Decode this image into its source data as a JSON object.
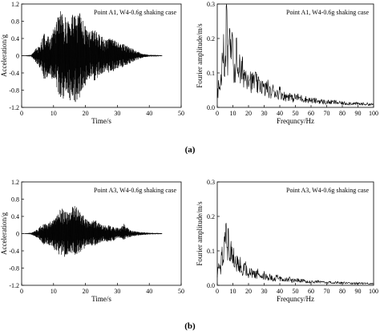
{
  "panels": [
    {
      "label": "(a)"
    },
    {
      "label": "(b)"
    }
  ],
  "chart_data": [
    {
      "type": "line",
      "title": "Point A1, W4-0.6g shaking case",
      "xlabel": "Time/s",
      "ylabel": "Acceleration/g",
      "xlim": [
        0,
        50
      ],
      "ylim": [
        -1.2,
        1.2
      ],
      "xticks": [
        "0",
        "10",
        "20",
        "30",
        "40",
        "50"
      ],
      "yticks": [
        "-1.2",
        "-0.8",
        "-0.4",
        "0",
        "0.4",
        "0.8",
        "1.2"
      ],
      "grid": false,
      "x": [
        0,
        3,
        4,
        5,
        6,
        7,
        8,
        9,
        10,
        11,
        12,
        13,
        14,
        15,
        16,
        17,
        18,
        19,
        20,
        21,
        22,
        23,
        24,
        25,
        26,
        27,
        28,
        29,
        30,
        31,
        32,
        33,
        34,
        35,
        36,
        37,
        38,
        40,
        44
      ],
      "y_max": [
        0,
        0.02,
        0.12,
        0.22,
        0.3,
        0.58,
        0.48,
        0.42,
        0.62,
        0.8,
        1.05,
        0.98,
        0.88,
        0.82,
        1.0,
        0.96,
        1.05,
        0.85,
        0.72,
        0.55,
        0.58,
        0.62,
        0.52,
        0.48,
        0.35,
        0.42,
        0.4,
        0.36,
        0.32,
        0.28,
        0.3,
        0.25,
        0.18,
        0.16,
        0.1,
        0.08,
        0.04,
        0.02,
        0.01
      ],
      "y_min": [
        0,
        -0.02,
        -0.12,
        -0.22,
        -0.32,
        -0.55,
        -0.5,
        -0.44,
        -0.62,
        -0.78,
        -0.95,
        -1.02,
        -0.88,
        -1.1,
        -0.98,
        -1.12,
        -1.0,
        -0.82,
        -0.7,
        -0.58,
        -0.55,
        -0.6,
        -0.5,
        -0.45,
        -0.38,
        -0.4,
        -0.42,
        -0.35,
        -0.3,
        -0.28,
        -0.26,
        -0.22,
        -0.18,
        -0.14,
        -0.1,
        -0.08,
        -0.04,
        -0.02,
        -0.01
      ]
    },
    {
      "type": "line",
      "title": "Point A1, W4-0.6g shaking case",
      "xlabel": "Frequncy/Hz",
      "ylabel": "Fourier amplitude/m/s",
      "xlim": [
        0,
        100
      ],
      "ylim": [
        0,
        0.3
      ],
      "xticks": [
        "0",
        "10",
        "20",
        "30",
        "40",
        "50",
        "60",
        "70",
        "80",
        "90",
        "100"
      ],
      "yticks": [
        "0.0",
        "0.1",
        "0.2",
        "0.3"
      ],
      "grid": false,
      "x": [
        0,
        1,
        2,
        3,
        4,
        5,
        6,
        7,
        8,
        9,
        10,
        11,
        12,
        13,
        14,
        15,
        16,
        18,
        20,
        22,
        24,
        26,
        28,
        30,
        32,
        34,
        36,
        38,
        40,
        42,
        44,
        46,
        48,
        50,
        55,
        60,
        65,
        70,
        75,
        80,
        85,
        90,
        95,
        100
      ],
      "y": [
        0.03,
        0.07,
        0.05,
        0.12,
        0.16,
        0.1,
        0.245,
        0.12,
        0.19,
        0.14,
        0.17,
        0.09,
        0.16,
        0.12,
        0.13,
        0.08,
        0.11,
        0.09,
        0.1,
        0.07,
        0.08,
        0.06,
        0.07,
        0.05,
        0.06,
        0.04,
        0.05,
        0.04,
        0.045,
        0.035,
        0.03,
        0.035,
        0.025,
        0.03,
        0.025,
        0.02,
        0.018,
        0.015,
        0.015,
        0.012,
        0.012,
        0.01,
        0.01,
        0.008
      ]
    },
    {
      "type": "line",
      "title": "Point A3, W4-0.6g shaking case",
      "xlabel": "Time/s",
      "ylabel": "Acceleration/g",
      "xlim": [
        0,
        50
      ],
      "ylim": [
        -1.2,
        1.2
      ],
      "xticks": [
        "0",
        "10",
        "20",
        "30",
        "40",
        "50"
      ],
      "yticks": [
        "-1.2",
        "-0.8",
        "-0.4",
        "0",
        "0.4",
        "0.8",
        "1.2"
      ],
      "grid": false,
      "x": [
        0,
        3,
        4,
        5,
        6,
        7,
        8,
        9,
        10,
        11,
        12,
        13,
        14,
        15,
        16,
        17,
        18,
        19,
        20,
        21,
        22,
        23,
        24,
        25,
        26,
        27,
        28,
        29,
        30,
        31,
        32,
        33,
        34,
        35,
        36,
        37,
        38,
        40,
        44
      ],
      "y_max": [
        0,
        0.02,
        0.06,
        0.1,
        0.18,
        0.25,
        0.22,
        0.28,
        0.32,
        0.42,
        0.55,
        0.6,
        0.52,
        0.48,
        0.62,
        0.7,
        0.55,
        0.45,
        0.35,
        0.28,
        0.3,
        0.32,
        0.26,
        0.22,
        0.18,
        0.2,
        0.18,
        0.16,
        0.14,
        0.12,
        0.24,
        0.15,
        0.08,
        0.06,
        0.05,
        0.04,
        0.03,
        0.02,
        0.01
      ],
      "y_min": [
        0,
        -0.02,
        -0.06,
        -0.1,
        -0.18,
        -0.26,
        -0.24,
        -0.28,
        -0.35,
        -0.45,
        -0.5,
        -0.55,
        -0.58,
        -0.48,
        -0.46,
        -0.5,
        -0.45,
        -0.4,
        -0.32,
        -0.26,
        -0.28,
        -0.3,
        -0.24,
        -0.22,
        -0.18,
        -0.2,
        -0.18,
        -0.16,
        -0.12,
        -0.1,
        -0.14,
        -0.1,
        -0.08,
        -0.06,
        -0.05,
        -0.04,
        -0.03,
        -0.02,
        -0.01
      ]
    },
    {
      "type": "line",
      "title": "Point A3, W4-0.6g shaking case",
      "xlabel": "Frequncy/Hz",
      "ylabel": "Fourier amplitude/m/s",
      "xlim": [
        0,
        100
      ],
      "ylim": [
        0,
        0.3
      ],
      "xticks": [
        "0",
        "10",
        "20",
        "30",
        "40",
        "50",
        "60",
        "70",
        "80",
        "90",
        "100"
      ],
      "yticks": [
        "0.0",
        "0.1",
        "0.2",
        "0.3"
      ],
      "grid": false,
      "x": [
        0,
        1,
        2,
        3,
        4,
        5,
        6,
        7,
        8,
        9,
        10,
        11,
        12,
        13,
        14,
        15,
        16,
        18,
        20,
        22,
        24,
        26,
        28,
        30,
        32,
        34,
        36,
        38,
        40,
        42,
        44,
        46,
        48,
        50,
        55,
        60,
        65,
        70,
        75,
        80,
        85,
        90,
        95,
        100
      ],
      "y": [
        0.02,
        0.07,
        0.05,
        0.09,
        0.06,
        0.175,
        0.11,
        0.13,
        0.09,
        0.11,
        0.07,
        0.09,
        0.06,
        0.07,
        0.05,
        0.06,
        0.04,
        0.05,
        0.035,
        0.04,
        0.03,
        0.035,
        0.025,
        0.03,
        0.02,
        0.025,
        0.02,
        0.022,
        0.018,
        0.02,
        0.015,
        0.018,
        0.012,
        0.015,
        0.012,
        0.01,
        0.01,
        0.008,
        0.008,
        0.007,
        0.006,
        0.006,
        0.005,
        0.005
      ]
    }
  ]
}
